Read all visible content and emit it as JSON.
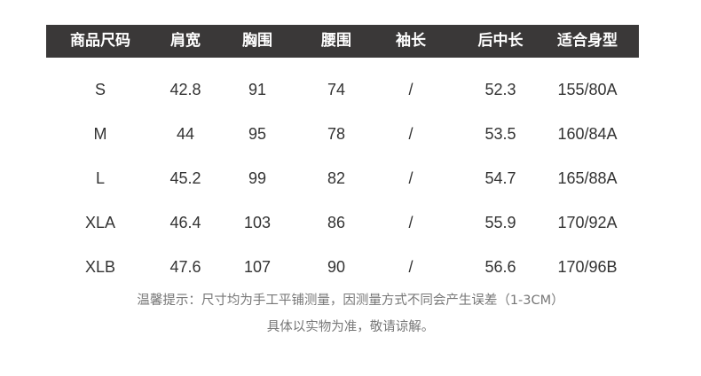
{
  "table": {
    "headers": [
      "商品尺码",
      "肩宽",
      "胸围",
      "腰围",
      "袖长",
      "后中长",
      "适合身型"
    ],
    "rows": [
      [
        "S",
        "42.8",
        "91",
        "74",
        "/",
        "52.3",
        "155/80A"
      ],
      [
        "M",
        "44",
        "95",
        "78",
        "/",
        "53.5",
        "160/84A"
      ],
      [
        "L",
        "45.2",
        "99",
        "82",
        "/",
        "54.7",
        "165/88A"
      ],
      [
        "XLA",
        "46.4",
        "103",
        "86",
        "/",
        "55.9",
        "170/92A"
      ],
      [
        "XLB",
        "47.6",
        "107",
        "90",
        "/",
        "56.6",
        "170/96B"
      ]
    ]
  },
  "notes": {
    "line1": "温馨提示：尺寸均为手工平铺测量，因测量方式不同会产生误差（1-3CM）",
    "line2": "具体以实物为准，敬请谅解。"
  },
  "colors": {
    "header_bg": "#3a3838",
    "header_text": "#ffffff",
    "body_text": "#333333",
    "note_text": "#777777"
  }
}
